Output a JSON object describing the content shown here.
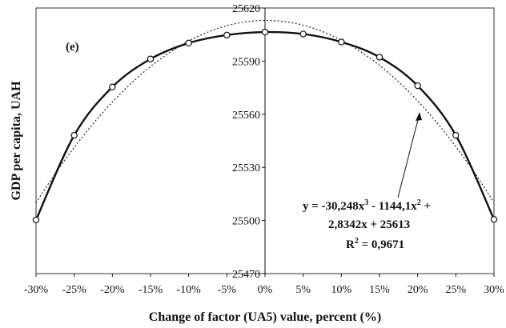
{
  "chart_data": {
    "type": "line",
    "panel_label": "(e)",
    "xlabel": "Change of factor (UA5) value, percent (%)",
    "ylabel": "GDP per capita, UAH",
    "x_ticks": [
      "-30%",
      "-25%",
      "-20%",
      "-15%",
      "-10%",
      "-5%",
      "0%",
      "5%",
      "10%",
      "15%",
      "20%",
      "25%",
      "30%"
    ],
    "y_ticks": [
      "25470",
      "25500",
      "25530",
      "25560",
      "25590",
      "25620"
    ],
    "xlim": [
      -30,
      30
    ],
    "ylim": [
      25470,
      25620
    ],
    "grid": false,
    "series": [
      {
        "style": "solid-with-markers",
        "x": [
          -30,
          -25,
          -20,
          -15,
          -10,
          -5,
          0,
          5,
          10,
          15,
          20,
          25,
          30
        ],
        "y": [
          25500.3,
          25548.1,
          25575.4,
          25591.2,
          25600.2,
          25604.7,
          25606.4,
          25605.3,
          25600.8,
          25592.2,
          25576.1,
          25548.1,
          25500.6
        ]
      },
      {
        "style": "dotted-trendline",
        "equation_coefficients": {
          "a3": -30.248,
          "a2": -1144.1,
          "a1": 2.8342,
          "a0": 25613
        },
        "x_range": [
          -30,
          30
        ]
      }
    ],
    "annotation": {
      "line1": "y = -30,248x",
      "line1_sup": "3",
      "line1b": " - 1144,1x",
      "line1b_sup": "2",
      "line1c": " +",
      "line2": "2,8342x + 25613",
      "line3": "R",
      "line3_sup": "2",
      "line3b": " = 0,9671"
    }
  }
}
